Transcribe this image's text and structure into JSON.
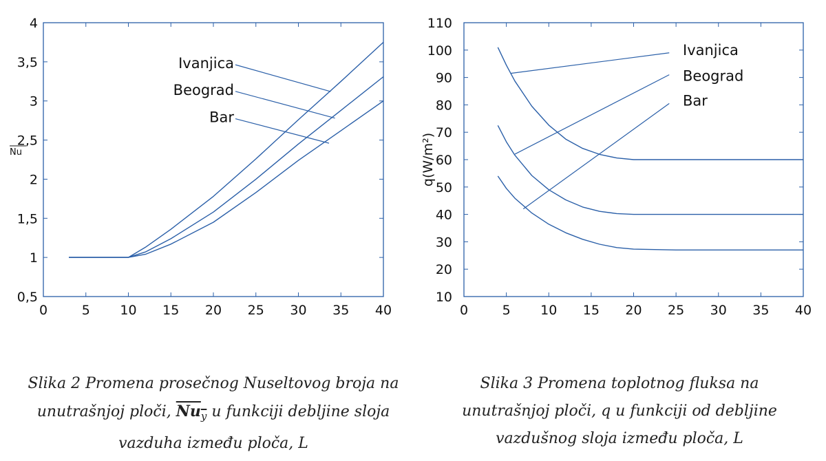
{
  "chart_data": [
    {
      "type": "line",
      "title": "",
      "xlabel": "",
      "ylabel": "Nu",
      "xlim": [
        0,
        40
      ],
      "ylim": [
        0.5,
        4
      ],
      "xticks": [
        0,
        5,
        10,
        15,
        20,
        25,
        30,
        35,
        40
      ],
      "xtick_labels": [
        "0",
        "5",
        "10",
        "15",
        "20",
        "25",
        "30",
        "35",
        "40"
      ],
      "yticks": [
        0.5,
        1,
        1.5,
        2,
        2.5,
        3,
        3.5,
        4
      ],
      "ytick_labels": [
        "0,5",
        "1",
        "1,5",
        "2",
        "2,5",
        "3",
        "3,5",
        "4"
      ],
      "grid": false,
      "series": [
        {
          "name": "Ivanjica",
          "x": [
            3,
            10,
            12,
            15,
            20,
            25,
            30,
            35,
            40
          ],
          "y": [
            1,
            1,
            1.13,
            1.36,
            1.78,
            2.26,
            2.76,
            3.25,
            3.75
          ]
        },
        {
          "name": "Beograd",
          "x": [
            3,
            10,
            12,
            15,
            20,
            25,
            30,
            35,
            40
          ],
          "y": [
            1,
            1,
            1.07,
            1.24,
            1.58,
            2.0,
            2.45,
            2.88,
            3.31
          ]
        },
        {
          "name": "Bar",
          "x": [
            3,
            10,
            12,
            15,
            20,
            25,
            30,
            35,
            40
          ],
          "y": [
            1,
            1,
            1.04,
            1.17,
            1.45,
            1.83,
            2.24,
            2.62,
            3.0
          ]
        }
      ],
      "annotations": [
        {
          "text": "Ivanjica",
          "x": 22.5,
          "y": 3.48,
          "leader_to": [
            33.8,
            3.12
          ]
        },
        {
          "text": "Beograd",
          "x": 22.5,
          "y": 3.14,
          "leader_to": [
            34.3,
            2.78
          ]
        },
        {
          "text": "Bar",
          "x": 22.5,
          "y": 2.79,
          "leader_to": [
            33.6,
            2.46
          ]
        }
      ]
    },
    {
      "type": "line",
      "title": "",
      "xlabel": "",
      "ylabel": "q(W/m²)",
      "xlim": [
        0,
        40
      ],
      "ylim": [
        10,
        110
      ],
      "xticks": [
        0,
        5,
        10,
        15,
        20,
        25,
        30,
        35,
        40
      ],
      "xtick_labels": [
        "0",
        "5",
        "10",
        "15",
        "20",
        "25",
        "30",
        "35",
        "40"
      ],
      "yticks": [
        10,
        20,
        30,
        40,
        50,
        60,
        70,
        80,
        90,
        100,
        110
      ],
      "ytick_labels": [
        "10",
        "20",
        "30",
        "40",
        "50",
        "60",
        "70",
        "80",
        "90",
        "100",
        "110"
      ],
      "grid": false,
      "series": [
        {
          "name": "Ivanjica",
          "x": [
            4,
            5,
            6,
            8,
            10,
            12,
            14,
            16,
            18,
            20,
            25,
            30,
            35,
            40
          ],
          "y": [
            101,
            94.5,
            88.7,
            79.5,
            72.6,
            67.5,
            64.1,
            61.9,
            60.6,
            60,
            60,
            60,
            60,
            60
          ]
        },
        {
          "name": "Beograd",
          "x": [
            4,
            5,
            6,
            8,
            10,
            12,
            14,
            16,
            18,
            20,
            25,
            30,
            35,
            40
          ],
          "y": [
            72.5,
            66.5,
            61.6,
            54.2,
            49,
            45.3,
            42.7,
            41.1,
            40.3,
            40,
            40,
            40,
            40,
            40
          ]
        },
        {
          "name": "Bar",
          "x": [
            4,
            5,
            6,
            8,
            10,
            12,
            14,
            16,
            18,
            20,
            25,
            30,
            35,
            40
          ],
          "y": [
            54,
            49.5,
            45.9,
            40.5,
            36.4,
            33.3,
            30.9,
            29.1,
            27.9,
            27.3,
            27,
            27,
            27,
            27
          ]
        }
      ],
      "annotations": [
        {
          "text": "Ivanjica",
          "x": 26.5,
          "y": 100,
          "leader_from": [
            5.5,
            91.5
          ],
          "leader_to": [
            24.2,
            99
          ]
        },
        {
          "text": "Beograd",
          "x": 26.5,
          "y": 90.5,
          "leader_from": [
            6,
            62
          ],
          "leader_to": [
            24.2,
            91
          ]
        },
        {
          "text": "Bar",
          "x": 26.5,
          "y": 81.5,
          "leader_from": [
            7,
            42
          ],
          "leader_to": [
            24.2,
            80.5
          ]
        }
      ]
    }
  ],
  "captions": {
    "left": {
      "line1": "Slika  2 Promena prosečnog Nuseltovog broja na",
      "line2_pre": "unutrašnjoj ploči,",
      "symbol": "Nu",
      "symbol_sub": "y",
      "line2_post": "u funkciji debljine sloja",
      "line3": "vazduha između ploča, L"
    },
    "right": {
      "line1": "Slika 3 Promena toplotnog fluksa na",
      "line2": "unutrašnjoj ploči, q u funkciji  od  debljine",
      "line3": "vazdušnog  sloja  između  ploča,  L"
    }
  },
  "colors": {
    "line": "#2a5fa8",
    "axis": "#2a5fa8",
    "text": "#111111"
  }
}
